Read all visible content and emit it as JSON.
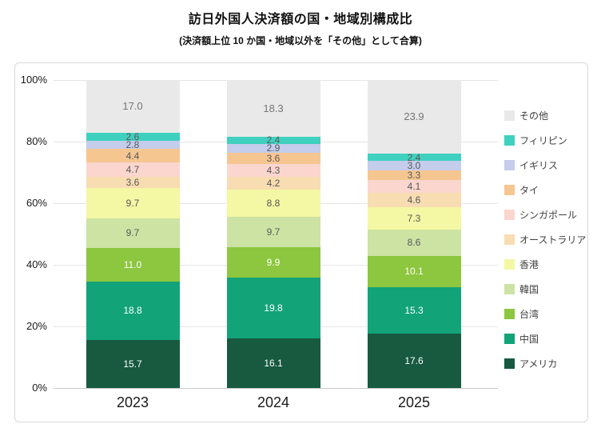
{
  "title": "訪日外国人決済額の国・地域別構成比",
  "subtitle": "(決済額上位 10 か国・地域以外を「その他」として合算)",
  "chart_data": {
    "type": "bar",
    "subtype": "stacked-100-percent-column",
    "title": "訪日外国人決済額の国・地域別構成比",
    "subtitle": "(決済額上位 10 か国・地域以外を「その他」として合算)",
    "categories": [
      "2023",
      "2024",
      "2025"
    ],
    "series": [
      {
        "name": "アメリカ",
        "color": "#175a40",
        "label_color": "#ffffff",
        "values": [
          15.7,
          16.1,
          17.6
        ]
      },
      {
        "name": "中国",
        "color": "#12a379",
        "label_color": "#ffffff",
        "values": [
          18.8,
          19.8,
          15.3
        ]
      },
      {
        "name": "台湾",
        "color": "#8dc63f",
        "label_color": "#ffffff",
        "values": [
          11.0,
          9.9,
          10.1
        ]
      },
      {
        "name": "韓国",
        "color": "#cce3a4",
        "label_color": "#595959",
        "values": [
          9.7,
          9.7,
          8.6
        ]
      },
      {
        "name": "香港",
        "color": "#f4f7a3",
        "label_color": "#595959",
        "values": [
          9.7,
          8.8,
          7.3
        ]
      },
      {
        "name": "オーストラリア",
        "color": "#f8dcb2",
        "label_color": "#595959",
        "values": [
          3.6,
          4.2,
          4.6
        ]
      },
      {
        "name": "シンガポール",
        "color": "#fad6ce",
        "label_color": "#595959",
        "values": [
          4.7,
          4.3,
          4.1
        ]
      },
      {
        "name": "タイ",
        "color": "#f6c691",
        "label_color": "#595959",
        "values": [
          4.4,
          3.6,
          3.3
        ]
      },
      {
        "name": "イギリス",
        "color": "#c4cdeb",
        "label_color": "#595959",
        "values": [
          2.8,
          2.9,
          3.0
        ]
      },
      {
        "name": "フィリピン",
        "color": "#3fd0bf",
        "label_color": "#595959",
        "values": [
          2.6,
          2.4,
          2.4
        ]
      },
      {
        "name": "その他",
        "color": "#e9e9e9",
        "label_color": "#757575",
        "label_size": 13,
        "values": [
          17.0,
          18.3,
          23.9
        ]
      }
    ],
    "y_ticks": [
      "100%",
      "80%",
      "60%",
      "40%",
      "20%",
      "0%"
    ],
    "ylim": [
      0,
      100
    ],
    "grid": true,
    "legend_position": "right",
    "legend_order": "top-is-last-series"
  }
}
